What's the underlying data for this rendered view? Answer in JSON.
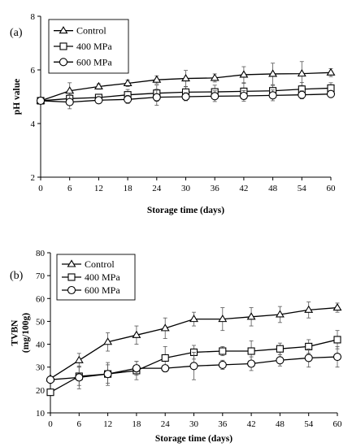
{
  "chart_data": [
    {
      "type": "line",
      "panel_label": "(a)",
      "xlabel": "Storage time (days)",
      "ylabel": "pH value",
      "x": [
        0,
        6,
        12,
        18,
        24,
        30,
        36,
        42,
        48,
        54,
        60
      ],
      "xlim": [
        0,
        60
      ],
      "ylim": [
        2,
        8
      ],
      "yticks": [
        2,
        4,
        6,
        8
      ],
      "grid": false,
      "legend_position": "top-left",
      "series": [
        {
          "name": "Control",
          "marker": "triangle",
          "values": [
            4.85,
            5.22,
            5.38,
            5.5,
            5.63,
            5.68,
            5.7,
            5.82,
            5.85,
            5.86,
            5.9
          ],
          "errors": [
            0.05,
            0.3,
            0.1,
            0.12,
            0.15,
            0.3,
            0.15,
            0.3,
            0.4,
            0.45,
            0.15
          ]
        },
        {
          "name": "400 MPa",
          "marker": "square",
          "values": [
            4.85,
            4.93,
            4.97,
            5.07,
            5.13,
            5.17,
            5.18,
            5.2,
            5.22,
            5.28,
            5.32
          ],
          "errors": [
            0.05,
            0.15,
            0.1,
            0.2,
            0.3,
            0.2,
            0.25,
            0.3,
            0.2,
            0.25,
            0.2
          ]
        },
        {
          "name": "600 MPa",
          "marker": "circle",
          "values": [
            4.85,
            4.8,
            4.87,
            4.9,
            4.98,
            5.0,
            5.02,
            5.03,
            5.05,
            5.07,
            5.1
          ],
          "errors": [
            0.05,
            0.25,
            0.1,
            0.15,
            0.3,
            0.15,
            0.2,
            0.2,
            0.2,
            0.15,
            0.1
          ]
        }
      ]
    },
    {
      "type": "line",
      "panel_label": "(b)",
      "xlabel": "Storage time (days)",
      "ylabel": "TVBN (mg/100g)",
      "ylabel_lines": [
        "TVBN",
        "(mg/100g)"
      ],
      "x": [
        0,
        6,
        12,
        18,
        24,
        30,
        36,
        42,
        48,
        54,
        60
      ],
      "xlim": [
        0,
        60
      ],
      "ylim": [
        10,
        80
      ],
      "yticks": [
        10,
        20,
        30,
        40,
        50,
        60,
        70,
        80
      ],
      "grid": false,
      "legend_position": "top-left",
      "series": [
        {
          "name": "Control",
          "marker": "triangle",
          "values": [
            25,
            33,
            41,
            44,
            47,
            51,
            51,
            52,
            53,
            55,
            56
          ],
          "errors": [
            1,
            3,
            4,
            4,
            4.5,
            3,
            5,
            4,
            3.5,
            3.5,
            2
          ]
        },
        {
          "name": "400 MPa",
          "marker": "square",
          "values": [
            19,
            26,
            27,
            28.5,
            34,
            36.5,
            37,
            37,
            38,
            39,
            42
          ],
          "errors": [
            1,
            4,
            4,
            4,
            5,
            3,
            2,
            4.5,
            2.5,
            3,
            4
          ]
        },
        {
          "name": "600 MPa",
          "marker": "circle",
          "values": [
            24.5,
            25.5,
            27,
            29.5,
            29.5,
            30.5,
            31,
            31.5,
            33,
            34,
            34.5
          ],
          "errors": [
            1,
            5,
            5,
            3,
            1.5,
            6,
            2,
            3,
            2.5,
            4,
            4.5
          ]
        }
      ]
    }
  ]
}
